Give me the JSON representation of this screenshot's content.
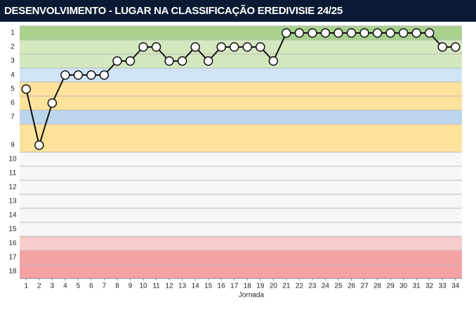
{
  "chart_data": {
    "type": "line",
    "title": "DESENVOLVIMENTO - LUGAR NA CLASSIFICAÇÃO EREDIVISIE 24/25",
    "x_label": "Jornada",
    "x": [
      1,
      2,
      3,
      4,
      5,
      6,
      7,
      8,
      9,
      10,
      11,
      12,
      13,
      14,
      15,
      16,
      17,
      18,
      19,
      20,
      21,
      22,
      23,
      24,
      25,
      26,
      27,
      28,
      29,
      30,
      31,
      32,
      33,
      34
    ],
    "series": [
      {
        "color": "#111111",
        "values": [
          5,
          9,
          6,
          4,
          4,
          4,
          4,
          3,
          3,
          2,
          2,
          3,
          3,
          2,
          3,
          2,
          2,
          2,
          2,
          3,
          1,
          1,
          1,
          1,
          1,
          1,
          1,
          1,
          1,
          1,
          1,
          1,
          2,
          2
        ]
      }
    ],
    "xlim": [
      0.5,
      34.5
    ],
    "xticks": [
      1,
      2,
      3,
      4,
      5,
      6,
      7,
      8,
      9,
      10,
      11,
      12,
      13,
      14,
      15,
      16,
      17,
      18,
      19,
      20,
      21,
      22,
      23,
      24,
      25,
      26,
      27,
      28,
      29,
      30,
      31,
      32,
      33,
      34
    ],
    "ylim": [
      18.5,
      0.5
    ],
    "yticks": [
      1,
      2,
      3,
      4,
      5,
      6,
      7,
      9,
      10,
      11,
      12,
      13,
      14,
      15,
      16,
      17,
      18
    ],
    "zones": [
      {
        "from": 1,
        "to": 1,
        "color": "#a9d18e"
      },
      {
        "from": 2,
        "to": 3,
        "color": "#d4e8bf"
      },
      {
        "from": 4,
        "to": 4,
        "color": "#cfe4f7"
      },
      {
        "from": 5,
        "to": 6,
        "color": "#fde29b"
      },
      {
        "from": 7,
        "to": 7,
        "color": "#bcd6ee"
      },
      {
        "from": 8,
        "to": 9,
        "color": "#fde29b"
      },
      {
        "from": 10,
        "to": 15,
        "color": "#f7f7f7"
      },
      {
        "from": 16,
        "to": 16,
        "color": "#f9cccc"
      },
      {
        "from": 17,
        "to": 18,
        "color": "#f4a3a3"
      }
    ]
  }
}
